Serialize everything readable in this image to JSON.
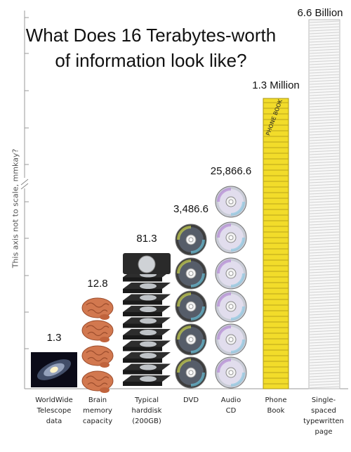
{
  "chart_data": {
    "type": "bar",
    "title_lines": [
      "What Does 16 Terabytes-worth",
      "of information look like?"
    ],
    "ylabel": "This axis not to scale, mmkay?",
    "categories": [
      "WorldWide Telescope data",
      "Brain memory capacity",
      "Typical harddisk (200GB)",
      "DVD",
      "Audio CD",
      "Phone Book",
      "Single-spaced typewritten page"
    ],
    "category_lines": [
      [
        "WorldWide",
        "Telescope",
        "data"
      ],
      [
        "Brain",
        "memory",
        "capacity"
      ],
      [
        "Typical",
        "harddisk",
        "(200GB)"
      ],
      [
        "DVD"
      ],
      [
        "Audio",
        "CD"
      ],
      [
        "Phone",
        "Book"
      ],
      [
        "Single-",
        "spaced",
        "typewritten",
        "page"
      ]
    ],
    "values": [
      1.3,
      12.8,
      81.3,
      3486.6,
      25866.6,
      1300000,
      6600000000
    ],
    "value_labels": [
      "1.3",
      "12.8",
      "81.3",
      "3,486.6",
      "25,866.6",
      "1.3 Million",
      "6.6 Billion"
    ],
    "icons": [
      "galaxy-icon",
      "brain-icon",
      "harddisk-icon",
      "dvd-icon",
      "cd-icon",
      "phone-book-icon",
      "paper-page-icon"
    ],
    "scale": "not to scale",
    "grid": false
  }
}
